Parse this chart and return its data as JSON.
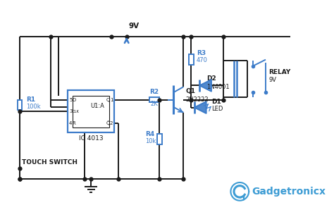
{
  "bg_color": "#ffffff",
  "line_color": "#1a1a1a",
  "blue": "#3d7cc9",
  "gadget_color": "#3d9cd4",
  "vcc": "9V",
  "R1_label": "R1",
  "R1_val": "100k",
  "R2_label": "R2",
  "R2_val": "2K",
  "R3_label": "R3",
  "R3_val": "470",
  "R4_label": "R4",
  "R4_val": "10k",
  "D1_label": "D1",
  "D1_val": "LED",
  "D2_label": "D2",
  "D2_val": "1N4001",
  "Q1_label": "Q1",
  "Q1_val": "2N2222",
  "IC_label": "IC 4013",
  "U1_label": "U1:A",
  "relay_label": "RELAY",
  "relay_val": "9V",
  "touch_label": "TOUCH SWITCH"
}
